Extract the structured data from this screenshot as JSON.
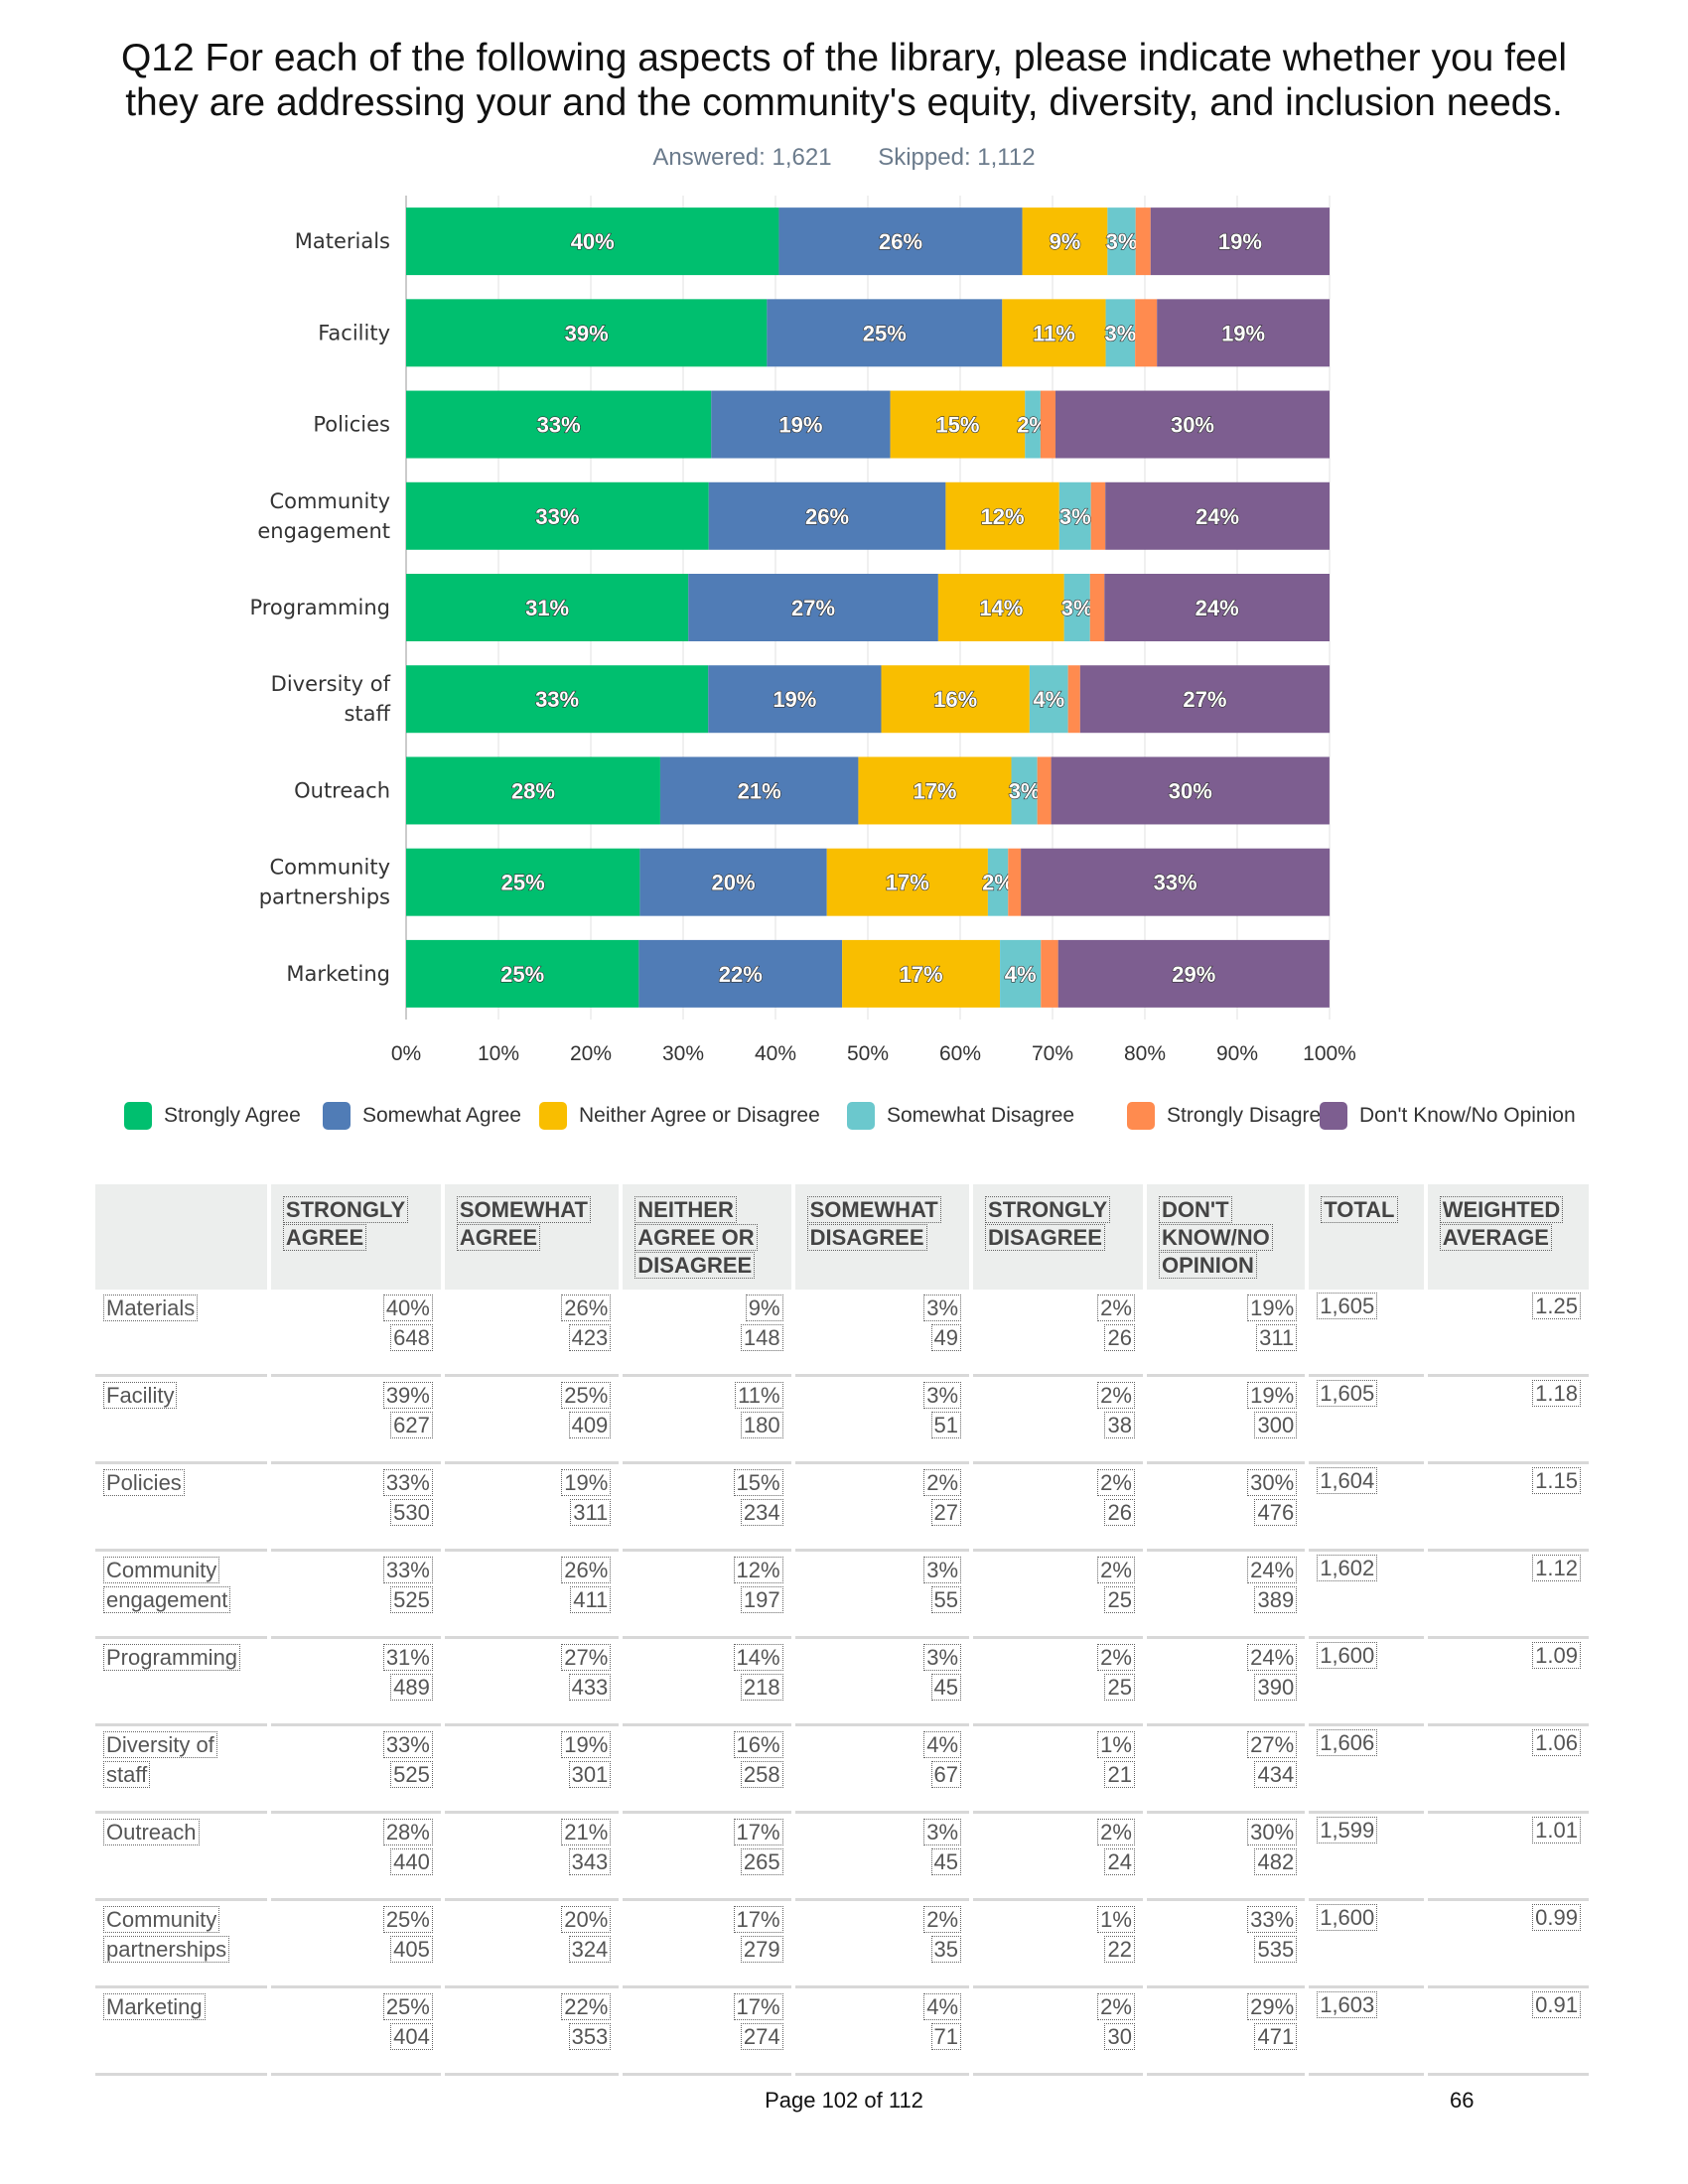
{
  "title_lines": [
    "Q12 For each of the following aspects of the library, please indicate whether you feel",
    "they are addressing your and the community's equity, diversity, and inclusion needs."
  ],
  "answered": "Answered: 1,621",
  "skipped": "Skipped: 1,112",
  "colors": {
    "Strongly Agree": "#00bf6f",
    "Somewhat Agree": "#507cb6",
    "Neither Agree or Disagree": "#f9be00",
    "Somewhat Disagree": "#6bc8cd",
    "Strongly Disagree": "#ff8b4f",
    "Don't Know/No Opinion": "#7d5e90"
  },
  "chart_data": {
    "type": "bar",
    "orientation": "horizontal",
    "stacked": true,
    "categories": [
      "Materials",
      "Facility",
      "Policies",
      "Community engagement",
      "Programming",
      "Diversity of staff",
      "Outreach",
      "Community partnerships",
      "Marketing"
    ],
    "category_lines": [
      [
        "Materials"
      ],
      [
        "Facility"
      ],
      [
        "Policies"
      ],
      [
        "Community",
        "engagement"
      ],
      [
        "Programming"
      ],
      [
        "Diversity of",
        "staff"
      ],
      [
        "Outreach"
      ],
      [
        "Community",
        "partnerships"
      ],
      [
        "Marketing"
      ]
    ],
    "series": [
      {
        "name": "Strongly Agree",
        "values": [
          40.37,
          39.07,
          33.04,
          32.77,
          30.56,
          32.71,
          27.52,
          25.31,
          25.2
        ]
      },
      {
        "name": "Somewhat Agree",
        "values": [
          26.36,
          25.48,
          19.39,
          25.66,
          27.06,
          18.74,
          21.45,
          20.25,
          22.02
        ]
      },
      {
        "name": "Neither Agree or Disagree",
        "values": [
          9.22,
          11.21,
          14.59,
          12.3,
          13.63,
          16.06,
          16.57,
          17.44,
          17.09
        ]
      },
      {
        "name": "Somewhat Disagree",
        "values": [
          3.05,
          3.18,
          1.68,
          3.43,
          2.81,
          4.17,
          2.81,
          2.19,
          4.43
        ]
      },
      {
        "name": "Strongly Disagree",
        "values": [
          1.62,
          2.37,
          1.62,
          1.56,
          1.56,
          1.31,
          1.5,
          1.38,
          1.87
        ]
      },
      {
        "name": "Don't Know/No Opinion",
        "values": [
          19.38,
          18.69,
          29.68,
          24.28,
          24.38,
          27.02,
          30.14,
          33.44,
          29.38
        ]
      }
    ],
    "bar_labels": [
      [
        "40%",
        "26%",
        "9%",
        "3%",
        "",
        "19%"
      ],
      [
        "39%",
        "25%",
        "11%",
        "3%",
        "",
        "19%"
      ],
      [
        "33%",
        "19%",
        "15%",
        "2%",
        "",
        "30%"
      ],
      [
        "33%",
        "26%",
        "12%",
        "3%",
        "",
        "24%"
      ],
      [
        "31%",
        "27%",
        "14%",
        "3%",
        "",
        "24%"
      ],
      [
        "33%",
        "19%",
        "16%",
        "4%",
        "",
        "27%"
      ],
      [
        "28%",
        "21%",
        "17%",
        "3%",
        "",
        "30%"
      ],
      [
        "25%",
        "20%",
        "17%",
        "2%",
        "",
        "33%"
      ],
      [
        "25%",
        "22%",
        "17%",
        "4%",
        "",
        "29%"
      ]
    ],
    "xlim": [
      0,
      100
    ],
    "xticks": [
      "0%",
      "10%",
      "20%",
      "30%",
      "40%",
      "50%",
      "60%",
      "70%",
      "80%",
      "90%",
      "100%"
    ],
    "grid": true,
    "legend_position": "bottom"
  },
  "table": {
    "headers": [
      [
        "STRONGLY",
        "AGREE"
      ],
      [
        "SOMEWHAT",
        "AGREE"
      ],
      [
        "NEITHER",
        "AGREE OR",
        "DISAGREE"
      ],
      [
        "SOMEWHAT",
        "DISAGREE"
      ],
      [
        "STRONGLY",
        "DISAGREE"
      ],
      [
        "DON'T",
        "KNOW/NO",
        "OPINION"
      ],
      [
        "TOTAL"
      ],
      [
        "WEIGHTED",
        "AVERAGE"
      ]
    ],
    "rows": [
      {
        "label": [
          "Materials"
        ],
        "cells": [
          [
            "40%",
            "648"
          ],
          [
            "26%",
            "423"
          ],
          [
            "9%",
            "148"
          ],
          [
            "3%",
            "49"
          ],
          [
            "2%",
            "26"
          ],
          [
            "19%",
            "311"
          ]
        ],
        "total": "1,605",
        "avg": "1.25"
      },
      {
        "label": [
          "Facility"
        ],
        "cells": [
          [
            "39%",
            "627"
          ],
          [
            "25%",
            "409"
          ],
          [
            "11%",
            "180"
          ],
          [
            "3%",
            "51"
          ],
          [
            "2%",
            "38"
          ],
          [
            "19%",
            "300"
          ]
        ],
        "total": "1,605",
        "avg": "1.18"
      },
      {
        "label": [
          "Policies"
        ],
        "cells": [
          [
            "33%",
            "530"
          ],
          [
            "19%",
            "311"
          ],
          [
            "15%",
            "234"
          ],
          [
            "2%",
            "27"
          ],
          [
            "2%",
            "26"
          ],
          [
            "30%",
            "476"
          ]
        ],
        "total": "1,604",
        "avg": "1.15"
      },
      {
        "label": [
          "Community",
          "engagement"
        ],
        "cells": [
          [
            "33%",
            "525"
          ],
          [
            "26%",
            "411"
          ],
          [
            "12%",
            "197"
          ],
          [
            "3%",
            "55"
          ],
          [
            "2%",
            "25"
          ],
          [
            "24%",
            "389"
          ]
        ],
        "total": "1,602",
        "avg": "1.12"
      },
      {
        "label": [
          "Programming"
        ],
        "cells": [
          [
            "31%",
            "489"
          ],
          [
            "27%",
            "433"
          ],
          [
            "14%",
            "218"
          ],
          [
            "3%",
            "45"
          ],
          [
            "2%",
            "25"
          ],
          [
            "24%",
            "390"
          ]
        ],
        "total": "1,600",
        "avg": "1.09"
      },
      {
        "label": [
          "Diversity of",
          "staff"
        ],
        "cells": [
          [
            "33%",
            "525"
          ],
          [
            "19%",
            "301"
          ],
          [
            "16%",
            "258"
          ],
          [
            "4%",
            "67"
          ],
          [
            "1%",
            "21"
          ],
          [
            "27%",
            "434"
          ]
        ],
        "total": "1,606",
        "avg": "1.06"
      },
      {
        "label": [
          "Outreach"
        ],
        "cells": [
          [
            "28%",
            "440"
          ],
          [
            "21%",
            "343"
          ],
          [
            "17%",
            "265"
          ],
          [
            "3%",
            "45"
          ],
          [
            "2%",
            "24"
          ],
          [
            "30%",
            "482"
          ]
        ],
        "total": "1,599",
        "avg": "1.01"
      },
      {
        "label": [
          "Community",
          "partnerships"
        ],
        "cells": [
          [
            "25%",
            "405"
          ],
          [
            "20%",
            "324"
          ],
          [
            "17%",
            "279"
          ],
          [
            "2%",
            "35"
          ],
          [
            "1%",
            "22"
          ],
          [
            "33%",
            "535"
          ]
        ],
        "total": "1,600",
        "avg": "0.99"
      },
      {
        "label": [
          "Marketing"
        ],
        "cells": [
          [
            "25%",
            "404"
          ],
          [
            "22%",
            "353"
          ],
          [
            "17%",
            "274"
          ],
          [
            "4%",
            "71"
          ],
          [
            "2%",
            "30"
          ],
          [
            "29%",
            "471"
          ]
        ],
        "total": "1,603",
        "avg": "0.91"
      }
    ]
  },
  "footer": {
    "page_label": "Page 102 of 112",
    "page_number": "66"
  }
}
